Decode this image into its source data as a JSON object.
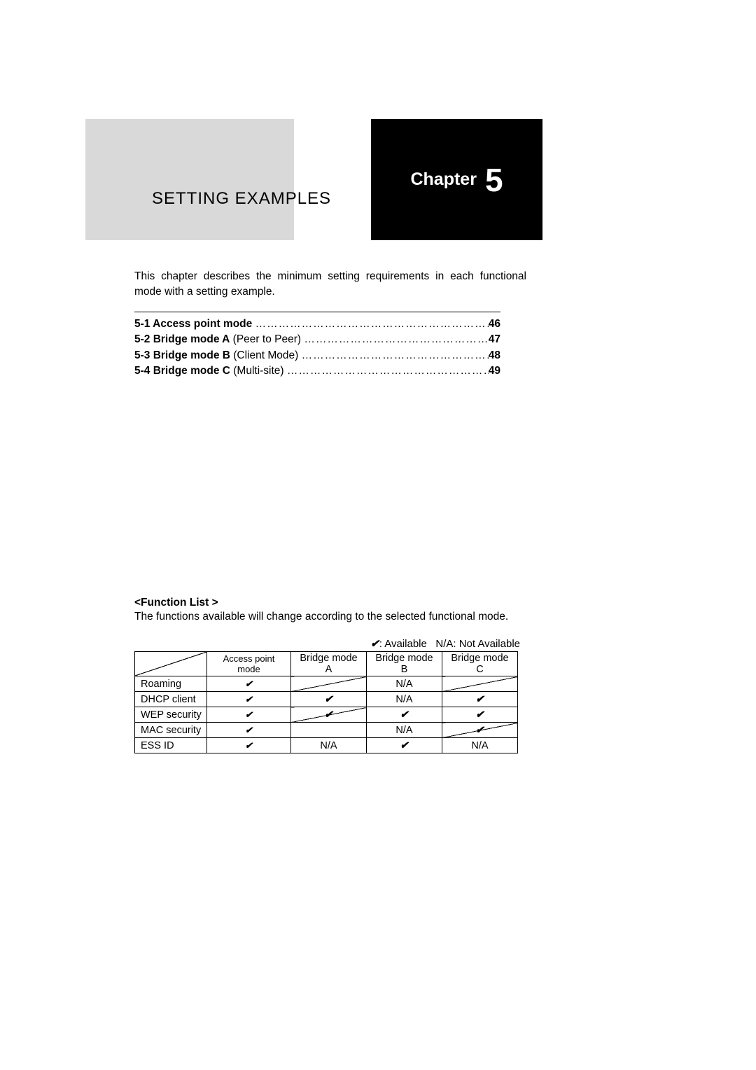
{
  "chapter": {
    "label": "Chapter",
    "number": "5"
  },
  "title": "SETTING EXAMPLES",
  "intro": "This chapter describes the minimum setting requirements in each functional mode with a setting example.",
  "toc": [
    {
      "num": "5-1",
      "bold": "Access point mode",
      "rest": "",
      "page": "46"
    },
    {
      "num": "5-2",
      "bold": "Bridge mode A",
      "rest": " (Peer to Peer)",
      "page": "47"
    },
    {
      "num": "5-3",
      "bold": "Bridge mode B",
      "rest": " (Client Mode)",
      "page": "48"
    },
    {
      "num": "5-4",
      "bold": "Bridge mode C",
      "rest": " (Multi-site)",
      "page": "49"
    }
  ],
  "functionList": {
    "heading": "<Function List >",
    "desc": "The functions available will change according to the selected functional mode.",
    "legend_check": "✔",
    "legend_avail": ": Available",
    "legend_na": "N/A: Not Available",
    "columns": [
      "Access point mode",
      "Bridge mode A",
      "Bridge mode B",
      "Bridge mode C"
    ],
    "rows": [
      {
        "name": "Roaming",
        "cells": [
          "✔",
          "",
          "N/A",
          ""
        ]
      },
      {
        "name": "DHCP client",
        "cells": [
          "✔",
          "✔",
          "N/A",
          "✔"
        ]
      },
      {
        "name": "WEP security",
        "cells": [
          "✔",
          "✔",
          "✔",
          "✔"
        ]
      },
      {
        "name": "MAC security",
        "cells": [
          "✔",
          "",
          "N/A",
          "✔"
        ]
      },
      {
        "name": "ESS ID",
        "cells": [
          "✔",
          "N/A",
          "✔",
          "N/A"
        ]
      }
    ],
    "diagonals": [
      [
        1,
        1
      ],
      [
        1,
        3
      ],
      [
        3,
        1
      ],
      [
        4,
        3
      ]
    ]
  }
}
